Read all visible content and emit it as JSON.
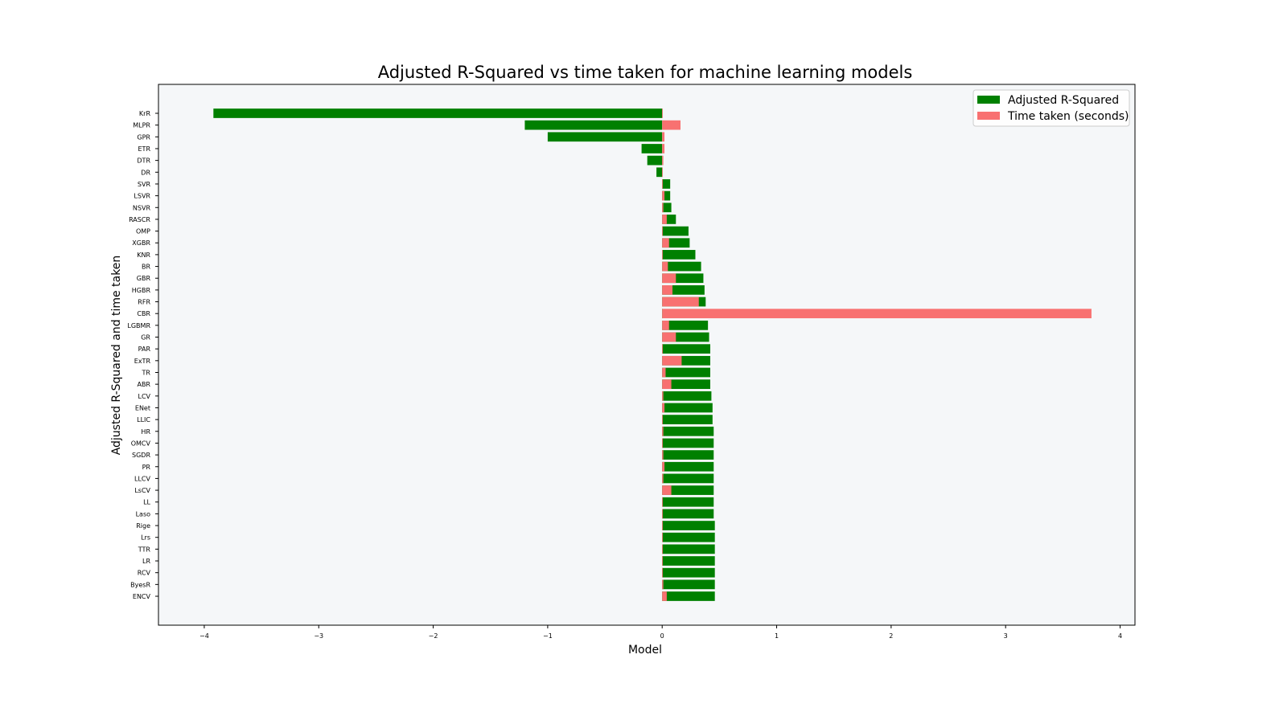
{
  "chart_data": {
    "type": "bar",
    "orientation": "horizontal",
    "title": "Adjusted R-Squared vs time taken for machine learning models",
    "xlabel": "Model",
    "ylabel": "Adjusted R-Squared and time taken",
    "xlim": [
      -4.4,
      4.13
    ],
    "xticks": [
      -4,
      -3,
      -2,
      -1,
      0,
      1,
      2,
      3,
      4
    ],
    "xtick_labels": [
      "−4",
      "−3",
      "−2",
      "−1",
      "0",
      "1",
      "2",
      "3",
      "4"
    ],
    "grid": false,
    "legend_position": "top-right",
    "background_color": "#f5f7f9",
    "categories": [
      "KrR",
      "MLPR",
      "GPR",
      "ETR",
      "DTR",
      "DR",
      "SVR",
      "LSVR",
      "NSVR",
      "RASCR",
      "OMP",
      "XGBR",
      "KNR",
      "BR",
      "GBR",
      "HGBR",
      "RFR",
      "CBR",
      "LGBMR",
      "GR",
      "PAR",
      "ExTR",
      "TR",
      "ABR",
      "LCV",
      "ENet",
      "LLIC",
      "HR",
      "OMCV",
      "SGDR",
      "PR",
      "LLCV",
      "LsCV",
      "LL",
      "Laso",
      "Rige",
      "Lrs",
      "TTR",
      "LR",
      "RCV",
      "ByesR",
      "ENCV"
    ],
    "series": [
      {
        "name": "Adjusted R-Squared",
        "color": "#008000",
        "values": [
          -3.92,
          -1.2,
          -1.0,
          -0.18,
          -0.13,
          -0.05,
          0.07,
          0.07,
          0.08,
          0.12,
          0.23,
          0.24,
          0.29,
          0.34,
          0.36,
          0.37,
          0.38,
          0.0,
          0.4,
          0.41,
          0.42,
          0.42,
          0.42,
          0.42,
          0.43,
          0.44,
          0.44,
          0.45,
          0.45,
          0.45,
          0.45,
          0.45,
          0.45,
          0.45,
          0.45,
          0.46,
          0.46,
          0.46,
          0.46,
          0.46,
          0.46,
          0.46
        ]
      },
      {
        "name": "Time taken (seconds)",
        "color": "#f87171",
        "values": [
          0.0,
          0.16,
          0.02,
          0.02,
          0.01,
          0.0,
          0.0,
          0.02,
          0.01,
          0.04,
          0.0,
          0.06,
          0.0,
          0.05,
          0.12,
          0.09,
          0.32,
          3.75,
          0.06,
          0.12,
          0.0,
          0.17,
          0.03,
          0.08,
          0.01,
          0.02,
          0.0,
          0.01,
          0.0,
          0.01,
          0.02,
          0.01,
          0.08,
          0.0,
          0.0,
          0.0,
          0.0,
          0.0,
          0.0,
          0.0,
          0.01,
          0.04
        ]
      }
    ]
  }
}
